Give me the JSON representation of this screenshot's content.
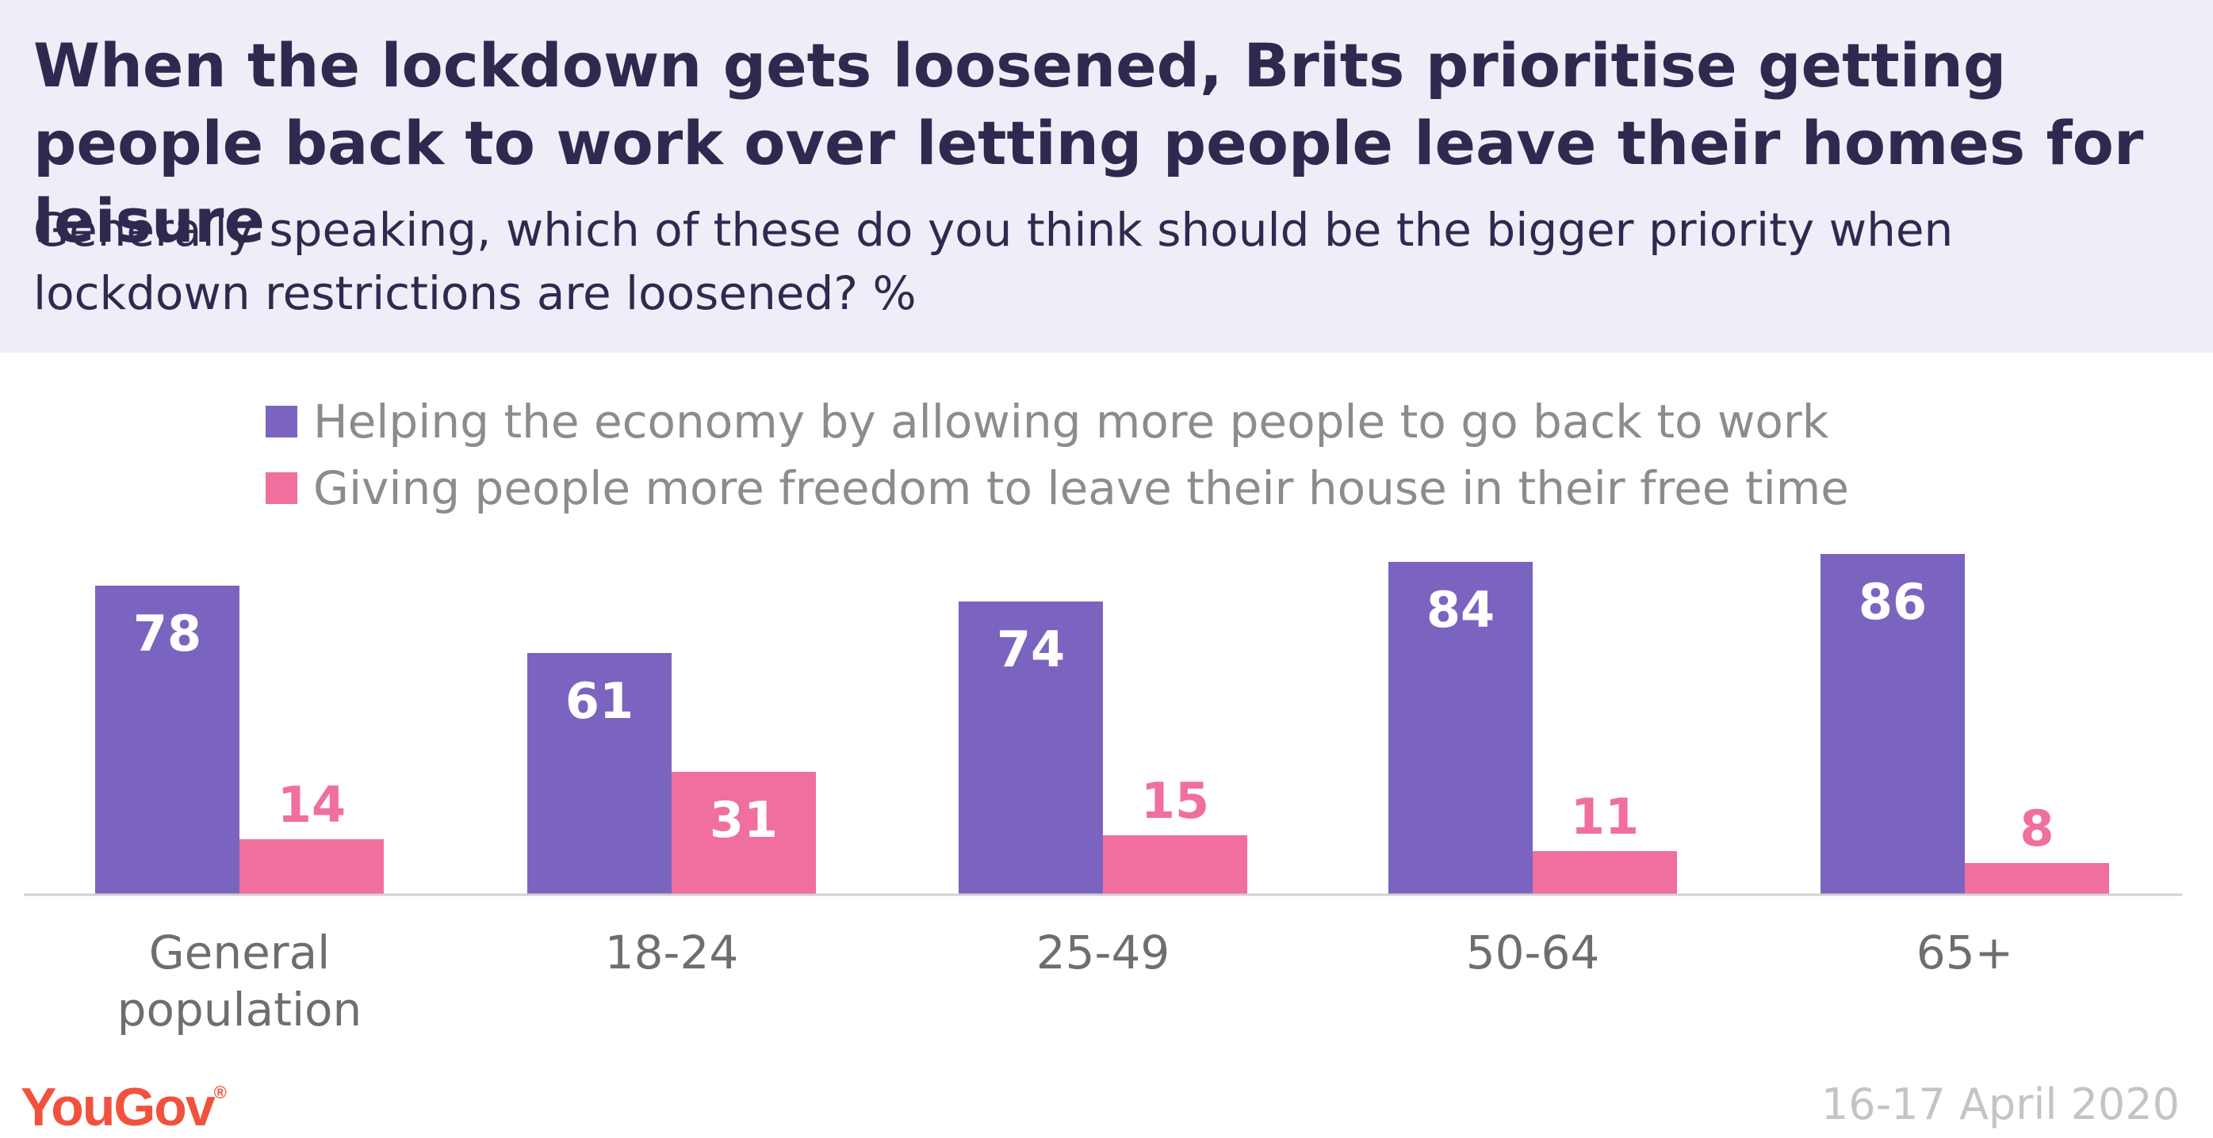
{
  "header": {
    "title": "When the lockdown gets loosened, Brits prioritise getting people back to work over letting people leave their homes for leisure",
    "subtitle": "Generally speaking, which of these do you think should be the bigger priority when lockdown restrictions are loosened? %"
  },
  "colors": {
    "series1": "#7b64c0",
    "series2": "#f06f9e",
    "header_bg": "#efedf7",
    "title_text": "#2e2a4f",
    "logo": "#f2523d",
    "baseline": "#d0d0d0",
    "category_text": "#6e6e6e"
  },
  "chart_data": {
    "type": "bar",
    "categories": [
      "General population",
      "18-24",
      "25-49",
      "50-64",
      "65+"
    ],
    "series": [
      {
        "name": "Helping the economy by allowing more people to go back to work",
        "values": [
          78,
          61,
          74,
          84,
          86
        ]
      },
      {
        "name": "Giving people more freedom to leave their house in their free time",
        "values": [
          14,
          31,
          15,
          11,
          8
        ]
      }
    ],
    "ylim": [
      0,
      86
    ],
    "grid": false,
    "legend_position": "top"
  },
  "footer": {
    "logo": "YouGov",
    "logo_mark": "®",
    "date": "16-17 April 2020"
  }
}
